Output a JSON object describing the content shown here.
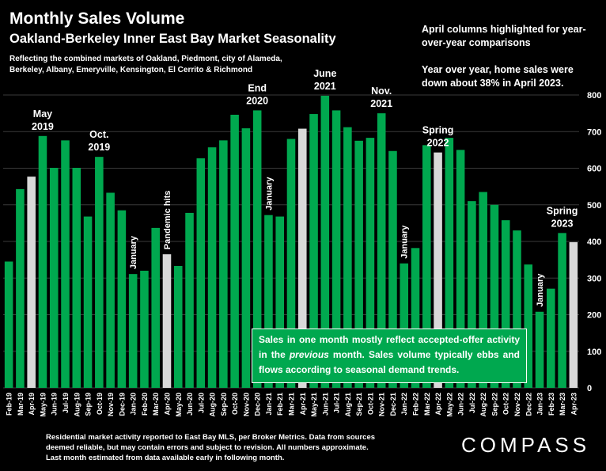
{
  "title": "Monthly Sales Volume",
  "subtitle": "Oakland-Berkeley Inner East Bay Market Seasonality",
  "description": "Reflecting the combined markets of Oakland, Piedmont, city of Alameda, Berkeley, Albany, Emeryville, Kensington, El Cerrito & Richmond",
  "note_highlight": "April columns highlighted for year-over-year comparisons",
  "note_yoy": "Year over year, home sales were down about 38% in April 2023.",
  "callout": {
    "before": "Sales in one month mostly reflect accepted-offer activity in the ",
    "emph": "previous",
    "after": " month. Sales volume typically ebbs and flows according to seasonal demand trends."
  },
  "footer": "Residential market activity reported to East Bay MLS, per Broker Metrics. Data from sources deemed reliable, but may contain errors and subject to revision. All numbers approximate. Last month estimated from data available early in following month.",
  "logo": "COMPASS",
  "colors": {
    "bar": "#00a84f",
    "highlight": "#d9d9d9",
    "background": "#000000",
    "text": "#ffffff"
  },
  "chart_data": {
    "type": "bar",
    "categories": [
      "Feb-19",
      "Mar-19",
      "Apr-19",
      "May-19",
      "Jun-19",
      "Jul-19",
      "Aug-19",
      "Sep-19",
      "Oct-19",
      "Nov-19",
      "Dec-19",
      "Jan-20",
      "Feb-20",
      "Mar-20",
      "Apr-20",
      "May-20",
      "Jun-20",
      "Jul-20",
      "Aug-20",
      "Sep-20",
      "Oct-20",
      "Nov-20",
      "Dec-20",
      "Jan-21",
      "Feb-21",
      "Mar-21",
      "Apr-21",
      "May-21",
      "Jun-21",
      "Jul-21",
      "Aug-21",
      "Sep-21",
      "Oct-21",
      "Nov-21",
      "Dec-21",
      "Jan-22",
      "Feb-22",
      "Mar-22",
      "Apr-22",
      "May-22",
      "Jun-22",
      "Jul-22",
      "Aug-22",
      "Sep-22",
      "Oct-22",
      "Nov-22",
      "Dec-22",
      "Jan-23",
      "Feb-23",
      "Mar-23",
      "Apr-23"
    ],
    "values": [
      345,
      543,
      577,
      688,
      601,
      676,
      601,
      468,
      631,
      533,
      485,
      311,
      320,
      437,
      365,
      333,
      478,
      627,
      657,
      676,
      746,
      709,
      758,
      472,
      468,
      680,
      708,
      748,
      798,
      758,
      712,
      675,
      683,
      750,
      647,
      340,
      382,
      663,
      643,
      683,
      650,
      510,
      535,
      500,
      458,
      430,
      337,
      208,
      271,
      423,
      398
    ],
    "highlight": [
      "Apr-19",
      "Apr-20",
      "Apr-21",
      "Apr-22",
      "Apr-23"
    ],
    "ylim": [
      0,
      800
    ],
    "yticks": [
      0,
      100,
      200,
      300,
      400,
      500,
      600,
      700,
      800
    ],
    "grid": true,
    "annotations": [
      {
        "text": [
          "May",
          "2019"
        ],
        "category": "May-19",
        "rotated": false
      },
      {
        "text": [
          "Oct.",
          "2019"
        ],
        "category": "Oct-19",
        "rotated": false
      },
      {
        "text": [
          "January"
        ],
        "category": "Jan-20",
        "rotated": true
      },
      {
        "text": [
          "Pandemic hits"
        ],
        "category": "Apr-20",
        "rotated": true
      },
      {
        "text": [
          "End",
          "2020"
        ],
        "category": "Dec-20",
        "rotated": false
      },
      {
        "text": [
          "January"
        ],
        "category": "Jan-21",
        "rotated": true
      },
      {
        "text": [
          "June",
          "2021"
        ],
        "category": "Jun-21",
        "rotated": false
      },
      {
        "text": [
          "Nov.",
          "2021"
        ],
        "category": "Nov-21",
        "rotated": false
      },
      {
        "text": [
          "January"
        ],
        "category": "Jan-22",
        "rotated": true
      },
      {
        "text": [
          "Spring",
          "2022"
        ],
        "category": "Apr-22",
        "rotated": false
      },
      {
        "text": [
          "January"
        ],
        "category": "Jan-23",
        "rotated": true
      },
      {
        "text": [
          "Spring",
          "2023"
        ],
        "category": "Mar-23",
        "rotated": false
      }
    ]
  }
}
